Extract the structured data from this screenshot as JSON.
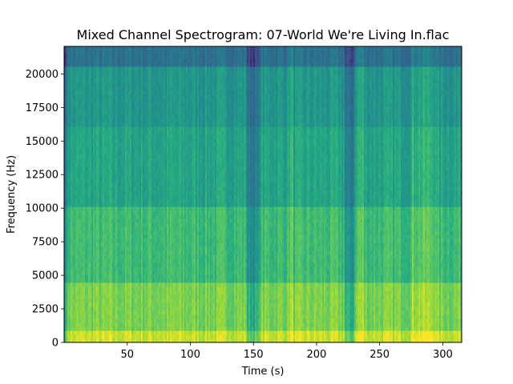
{
  "chart_data": {
    "type": "heatmap",
    "title": "Mixed Channel Spectrogram: 07-World We're Living In.flac",
    "xlabel": "Time (s)",
    "ylabel": "Frequency (Hz)",
    "xlim": [
      0,
      315
    ],
    "ylim": [
      0,
      22050
    ],
    "x_ticks": [
      50,
      100,
      150,
      200,
      250,
      300
    ],
    "y_ticks": [
      0,
      2500,
      5000,
      7500,
      10000,
      12500,
      15000,
      17500,
      20000
    ],
    "colormap": "viridis",
    "grid": false,
    "description_bands": [
      {
        "from_hz": 0,
        "to_hz": 1000,
        "level": 0.92
      },
      {
        "from_hz": 1000,
        "to_hz": 4500,
        "level": 0.8
      },
      {
        "from_hz": 4500,
        "to_hz": 10000,
        "level": 0.68
      },
      {
        "from_hz": 10000,
        "to_hz": 16000,
        "level": 0.58
      },
      {
        "from_hz": 16000,
        "to_hz": 20500,
        "level": 0.52
      },
      {
        "from_hz": 20500,
        "to_hz": 22050,
        "level": 0.35
      }
    ],
    "quiet_segments_s": [
      [
        0,
        3
      ],
      [
        145,
        155
      ],
      [
        222,
        230
      ]
    ],
    "loud_segments_s": [
      [
        275,
        295
      ],
      [
        233,
        238
      ],
      [
        178,
        182
      ]
    ]
  },
  "colors": {
    "v_low": "#2b6f8e",
    "v_mid": "#22a884",
    "v_high": "#b5de2b",
    "v_max": "#e5e419"
  }
}
